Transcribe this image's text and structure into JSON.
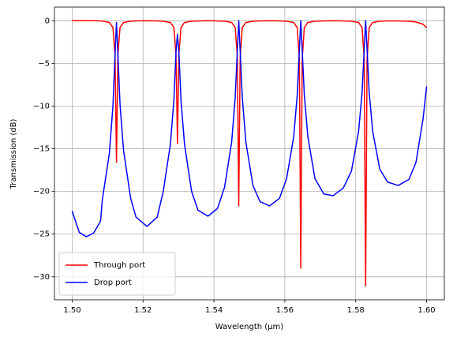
{
  "chart_data": {
    "type": "line",
    "xlabel": "Wavelength (μm)",
    "ylabel": "Transmission (dB)",
    "x": [
      1.5,
      1.502,
      1.504,
      1.506,
      1.508,
      1.5085,
      1.5105,
      1.5115,
      1.5121,
      1.5125,
      1.5129,
      1.5135,
      1.5145,
      1.5165,
      1.518,
      1.5211,
      1.524,
      1.5257,
      1.5277,
      1.5287,
      1.5293,
      1.5297,
      1.5301,
      1.5307,
      1.5317,
      1.5337,
      1.5355,
      1.5383,
      1.541,
      1.543,
      1.545,
      1.546,
      1.5466,
      1.547,
      1.5474,
      1.548,
      1.549,
      1.551,
      1.553,
      1.5557,
      1.5585,
      1.5605,
      1.5625,
      1.5635,
      1.5641,
      1.5645,
      1.5649,
      1.5655,
      1.5665,
      1.5685,
      1.571,
      1.5736,
      1.5765,
      1.5788,
      1.5808,
      1.5818,
      1.5824,
      1.5828,
      1.5832,
      1.5838,
      1.5848,
      1.5868,
      1.589,
      1.592,
      1.595,
      1.597,
      1.599,
      1.6
    ],
    "series": [
      {
        "name": "Through port",
        "color": "#ff0000",
        "values": [
          0,
          0,
          0,
          0,
          -0.02,
          -0.03,
          -0.2,
          -0.8,
          -4,
          -16.6,
          -4,
          -0.8,
          -0.2,
          -0.05,
          -0.02,
          0,
          -0.02,
          -0.05,
          -0.2,
          -0.8,
          -4,
          -14.4,
          -4,
          -0.8,
          -0.2,
          -0.05,
          -0.02,
          0,
          -0.02,
          -0.05,
          -0.2,
          -0.8,
          -4.2,
          -21.7,
          -4.2,
          -0.8,
          -0.2,
          -0.05,
          -0.02,
          0,
          -0.02,
          -0.05,
          -0.2,
          -0.8,
          -4.5,
          -29,
          -4.5,
          -0.8,
          -0.2,
          -0.05,
          -0.02,
          0,
          -0.02,
          -0.05,
          -0.2,
          -0.8,
          -4.5,
          -31.1,
          -4.5,
          -0.8,
          -0.2,
          -0.05,
          -0.02,
          -0.02,
          -0.05,
          -0.15,
          -0.4,
          -0.8
        ]
      },
      {
        "name": "Drop port",
        "color": "#0000ff",
        "values": [
          -22.3,
          -24.8,
          -25.3,
          -24.9,
          -23.5,
          -21.0,
          -15.5,
          -10,
          -4,
          -0.2,
          -4,
          -9.8,
          -15.2,
          -20.8,
          -23,
          -24.1,
          -23,
          -20,
          -14.5,
          -9.3,
          -3.6,
          -1.6,
          -3.6,
          -9.3,
          -14.5,
          -20,
          -22.2,
          -22.9,
          -22,
          -19.5,
          -14.2,
          -9,
          -3.5,
          0,
          -3.5,
          -9,
          -14.2,
          -19.3,
          -21.2,
          -21.7,
          -20.8,
          -18.5,
          -13.6,
          -8.7,
          -3.4,
          0,
          -3.4,
          -8.7,
          -13.6,
          -18.5,
          -20.3,
          -20.5,
          -19.6,
          -17.6,
          -13,
          -8.4,
          -3.3,
          0,
          -3.3,
          -8.4,
          -13,
          -17.4,
          -18.9,
          -19.3,
          -18.6,
          -16.6,
          -11.5,
          -7.7
        ]
      }
    ],
    "xlim": [
      1.495,
      1.605
    ],
    "ylim": [
      -32.7,
      1.6
    ],
    "xticks": [
      {
        "value": 1.5,
        "label": "1.50"
      },
      {
        "value": 1.52,
        "label": "1.52"
      },
      {
        "value": 1.54,
        "label": "1.54"
      },
      {
        "value": 1.56,
        "label": "1.56"
      },
      {
        "value": 1.58,
        "label": "1.58"
      },
      {
        "value": 1.6,
        "label": "1.60"
      }
    ],
    "yticks": [
      0,
      {
        "value": -5,
        "label": "−5"
      },
      {
        "value": -10,
        "label": "−10"
      },
      {
        "value": -15,
        "label": "−15"
      },
      {
        "value": -20,
        "label": "−20"
      },
      {
        "value": -25,
        "label": "−25"
      },
      {
        "value": -30,
        "label": "−30"
      }
    ],
    "grid": true,
    "legend": "lower-left"
  }
}
